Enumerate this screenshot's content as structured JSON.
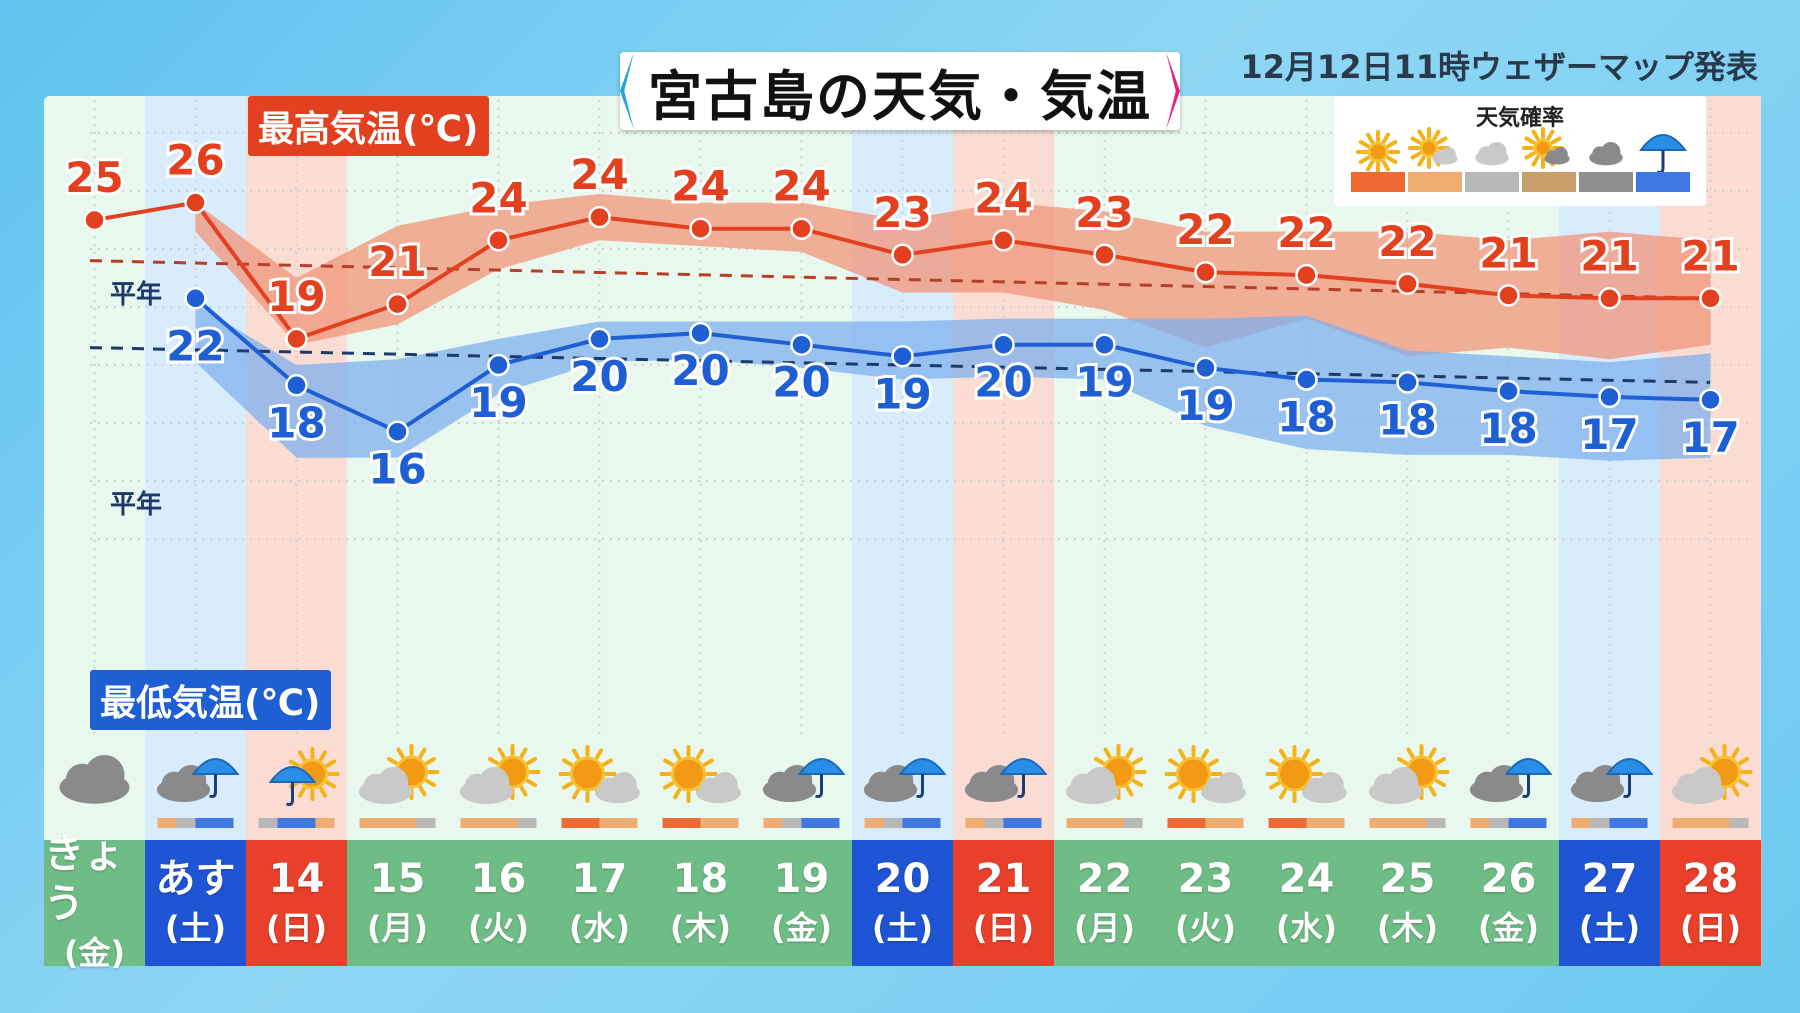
{
  "title": "宮古島の天気・気温",
  "issued": "12月12日11時ウェザーマップ発表",
  "labels": {
    "max": "最高気温(℃)",
    "min": "最低気温(℃)",
    "normal": "平年"
  },
  "legend": {
    "title": "天気確率",
    "items": [
      {
        "icon": "sun-icon",
        "color": "#ee6a33"
      },
      {
        "icon": "sun-cloud-icon",
        "color": "#f0ad72"
      },
      {
        "icon": "cloud-icon",
        "color": "#b8b8b8"
      },
      {
        "icon": "cloud-sun-icon",
        "color": "#c9a06b"
      },
      {
        "icon": "dark-cloud-icon",
        "color": "#8f8f8f"
      },
      {
        "icon": "rain-icon",
        "color": "#3f78e0"
      }
    ]
  },
  "days": [
    {
      "date": "きょう",
      "weekday": "(金)",
      "type": "weekday",
      "weather": "cloud"
    },
    {
      "date": "あす",
      "weekday": "(土)",
      "type": "sat",
      "weather": "cloud-rain"
    },
    {
      "date": "14",
      "weekday": "(日)",
      "type": "sun",
      "weather": "rain-sun"
    },
    {
      "date": "15",
      "weekday": "(月)",
      "type": "weekday",
      "weather": "cloud-sun"
    },
    {
      "date": "16",
      "weekday": "(火)",
      "type": "weekday",
      "weather": "cloud-sun"
    },
    {
      "date": "17",
      "weekday": "(水)",
      "type": "weekday",
      "weather": "sun-cloud"
    },
    {
      "date": "18",
      "weekday": "(木)",
      "type": "weekday",
      "weather": "sun-cloud"
    },
    {
      "date": "19",
      "weekday": "(金)",
      "type": "weekday",
      "weather": "cloud-rain"
    },
    {
      "date": "20",
      "weekday": "(土)",
      "type": "sat",
      "weather": "cloud-rain"
    },
    {
      "date": "21",
      "weekday": "(日)",
      "type": "sun",
      "weather": "cloud-rain"
    },
    {
      "date": "22",
      "weekday": "(月)",
      "type": "weekday",
      "weather": "cloud-sun"
    },
    {
      "date": "23",
      "weekday": "(火)",
      "type": "weekday",
      "weather": "sun-cloud"
    },
    {
      "date": "24",
      "weekday": "(水)",
      "type": "weekday",
      "weather": "sun-cloud"
    },
    {
      "date": "25",
      "weekday": "(木)",
      "type": "weekday",
      "weather": "cloud-sun"
    },
    {
      "date": "26",
      "weekday": "(金)",
      "type": "weekday",
      "weather": "cloud-rain"
    },
    {
      "date": "27",
      "weekday": "(土)",
      "type": "sat",
      "weather": "cloud-rain"
    },
    {
      "date": "28",
      "weekday": "(日)",
      "type": "sun",
      "weather": "cloud-sun"
    }
  ],
  "colors": {
    "weekday": "#6fbd86",
    "sat": "#1f55d4",
    "sun": "#e8402a",
    "max_line": "#e2401f",
    "min_line": "#1f5fd4",
    "max_band": "#f2967a",
    "min_band": "#7fb0ef",
    "col_sat": "#d9ecfb",
    "col_sun": "#fbdcd3"
  },
  "chart_data": {
    "type": "line",
    "y_range": [
      10,
      30
    ],
    "categories": [
      "きょう(金)",
      "あす(土)",
      "14(日)",
      "15(月)",
      "16(火)",
      "17(水)",
      "18(木)",
      "19(金)",
      "20(土)",
      "21(日)",
      "22(月)",
      "23(火)",
      "24(水)",
      "25(木)",
      "26(金)",
      "27(土)",
      "28(日)"
    ],
    "series": [
      {
        "name": "最高気温(℃)",
        "values": [
          25,
          26,
          19,
          21,
          24,
          24,
          24,
          24,
          23,
          24,
          23,
          22,
          22,
          22,
          21,
          21,
          21
        ],
        "plot_values": [
          25.0,
          25.6,
          20.9,
          22.1,
          24.3,
          25.1,
          24.7,
          24.7,
          23.8,
          24.3,
          23.8,
          23.2,
          23.1,
          22.8,
          22.4,
          22.3,
          22.3
        ],
        "band_upper": [
          null,
          25.6,
          23.0,
          24.8,
          25.5,
          25.9,
          25.6,
          25.6,
          25.0,
          25.6,
          25.3,
          24.6,
          24.6,
          24.6,
          24.3,
          24.6,
          24.3
        ],
        "band_lower": [
          null,
          24.6,
          20.7,
          21.4,
          23.3,
          24.3,
          24.1,
          23.9,
          22.5,
          22.5,
          21.9,
          20.6,
          21.6,
          20.3,
          20.6,
          20.2,
          20.7
        ]
      },
      {
        "name": "最低気温(℃)",
        "values": [
          null,
          22,
          18,
          16,
          19,
          20,
          20,
          20,
          19,
          20,
          19,
          19,
          18,
          18,
          18,
          17,
          17
        ],
        "plot_values": [
          null,
          22.3,
          19.3,
          17.7,
          20.0,
          20.9,
          21.1,
          20.7,
          20.3,
          20.7,
          20.7,
          19.9,
          19.5,
          19.4,
          19.1,
          18.9,
          18.8
        ],
        "band_upper": [
          null,
          22.1,
          20.0,
          20.2,
          20.9,
          21.5,
          21.5,
          21.5,
          21.5,
          21.6,
          21.6,
          21.6,
          21.7,
          20.5,
          20.3,
          20.1,
          20.4
        ],
        "band_lower": [
          null,
          20.1,
          16.8,
          16.8,
          19.0,
          20.1,
          20.2,
          19.9,
          19.5,
          19.6,
          19.5,
          17.9,
          17.1,
          16.9,
          16.9,
          16.7,
          16.8
        ]
      }
    ],
    "normal_max": [
      23.6,
      22.3
    ],
    "normal_min": [
      20.6,
      19.4
    ],
    "grid": true,
    "legend_position": "top-right"
  }
}
